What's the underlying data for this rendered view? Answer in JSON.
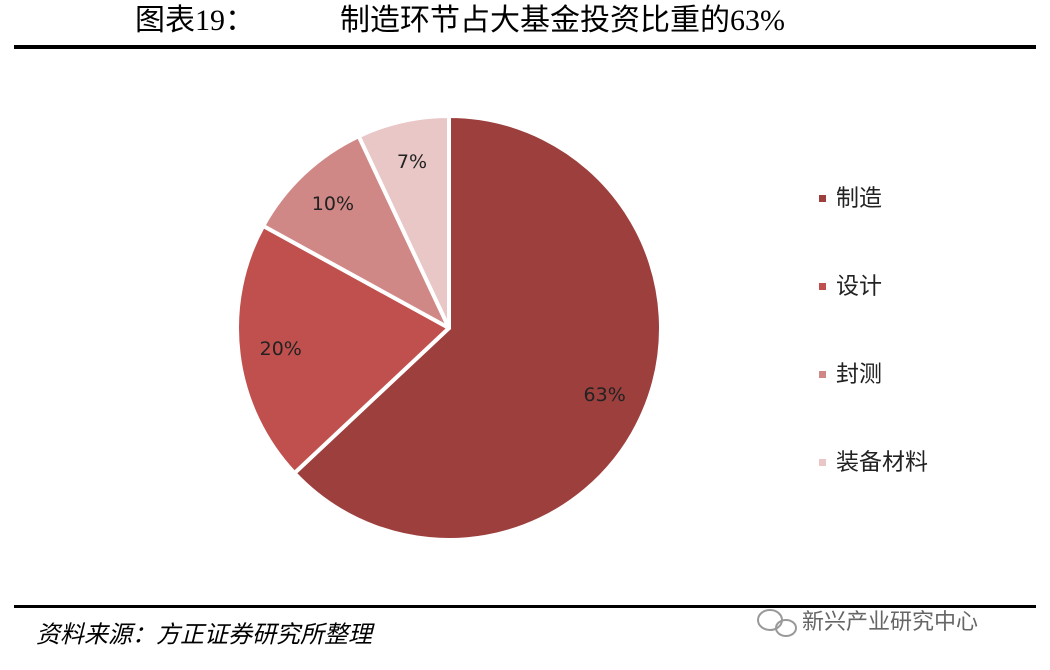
{
  "figure_label": "图表19：",
  "source": "资料来源：方正证券研究所整理",
  "watermark": "新兴产业研究中心",
  "chart_data": {
    "type": "pie",
    "title": "制造环节占大基金投资比重的63%",
    "categories": [
      "制造",
      "设计",
      "封测",
      "装备材料"
    ],
    "values": [
      63,
      20,
      10,
      7
    ],
    "value_labels": [
      "63%",
      "20%",
      "10%",
      "7%"
    ],
    "colors": [
      "#9c3f3d",
      "#c0504d",
      "#d08886",
      "#e8c7c6"
    ],
    "legend": "right"
  }
}
